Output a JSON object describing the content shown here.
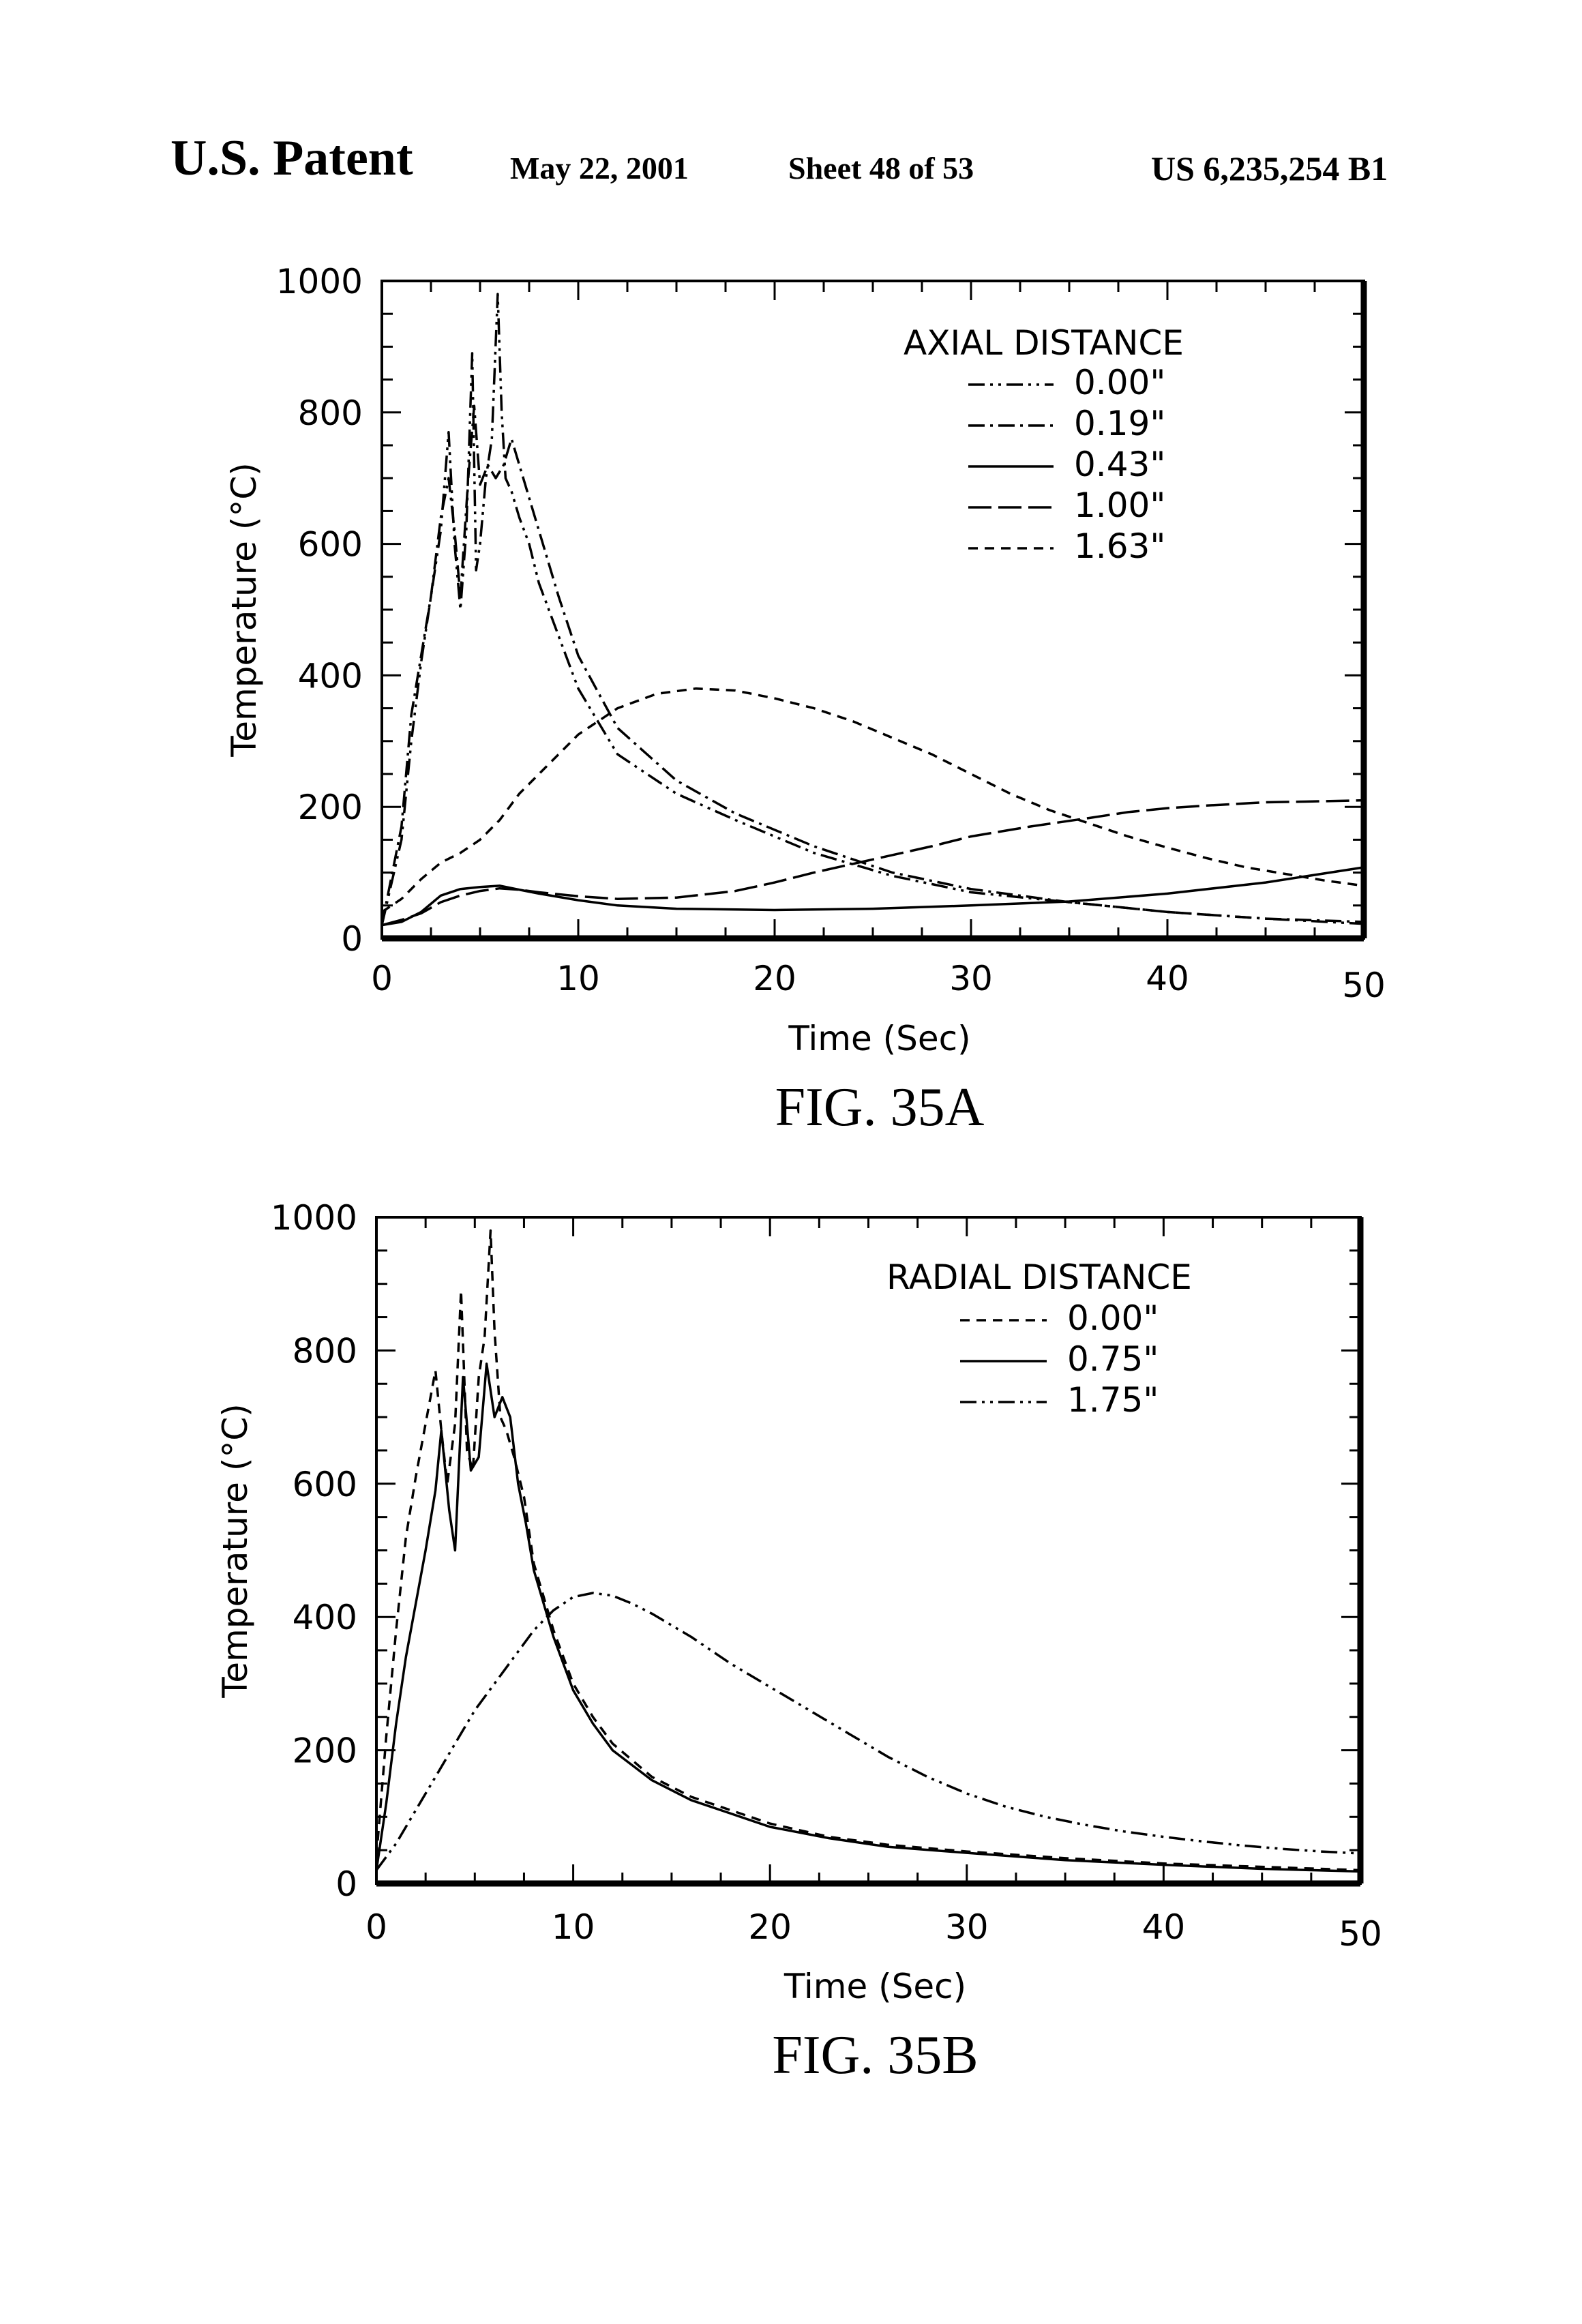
{
  "header": {
    "patent_label": "U.S. Patent",
    "date": "May 22, 2001",
    "sheet": "Sheet 48 of 53",
    "patent_number": "US 6,235,254 B1"
  },
  "dash_styles": {
    "solid": "none",
    "short-dash": "14 10",
    "dotted": "7 7",
    "dash-dot": "24 8 4 8",
    "dash-dot-dot": "24 8 4 8 4 8",
    "long-dash": "34 10"
  },
  "chart_data": [
    {
      "type": "line",
      "figure_label": "FIG. 35A",
      "xlabel": "Time (Sec)",
      "ylabel": "Temperature (°C)",
      "xlim": [
        0,
        50
      ],
      "ylim": [
        0,
        1000
      ],
      "xticks": [
        "0",
        "10",
        "20",
        "30",
        "40",
        "50"
      ],
      "yticks": [
        "0",
        "200",
        "400",
        "600",
        "800",
        "1000"
      ],
      "legend_title": "AXIAL DISTANCE",
      "legend_position": "top-right",
      "series": [
        {
          "name": "0.00\"",
          "style": "dash-dot-dot",
          "x": [
            0,
            1,
            1.5,
            2,
            2.5,
            3,
            3.4,
            3.7,
            4,
            4.3,
            4.6,
            4.8,
            5,
            5.3,
            5.6,
            5.9,
            6.1,
            6.3,
            6.6,
            7,
            7.5,
            8,
            9,
            10,
            12,
            15,
            18,
            22,
            26,
            30,
            35,
            40,
            45,
            50
          ],
          "y": [
            20,
            150,
            300,
            420,
            520,
            620,
            770,
            600,
            500,
            620,
            890,
            560,
            600,
            700,
            760,
            980,
            800,
            700,
            680,
            640,
            600,
            540,
            460,
            380,
            280,
            220,
            180,
            130,
            95,
            70,
            55,
            40,
            30,
            22
          ]
        },
        {
          "name": "0.19\"",
          "style": "dash-dot",
          "x": [
            0,
            1,
            1.5,
            2,
            2.5,
            3,
            3.4,
            3.7,
            4,
            4.4,
            4.7,
            5,
            5.4,
            5.8,
            6.2,
            6.6,
            7,
            7.5,
            8,
            9,
            10,
            12,
            15,
            18,
            22,
            26,
            30,
            35,
            40,
            45,
            50
          ],
          "y": [
            20,
            170,
            340,
            430,
            520,
            640,
            700,
            620,
            520,
            700,
            810,
            690,
            720,
            700,
            720,
            760,
            720,
            670,
            620,
            520,
            430,
            320,
            240,
            190,
            140,
            100,
            75,
            55,
            40,
            30,
            25
          ]
        },
        {
          "name": "0.43\"",
          "style": "solid",
          "x": [
            0,
            1,
            2,
            3,
            4,
            5,
            6,
            7,
            8,
            10,
            12,
            15,
            20,
            25,
            30,
            35,
            40,
            45,
            50
          ],
          "y": [
            20,
            25,
            40,
            65,
            75,
            78,
            80,
            74,
            68,
            58,
            50,
            45,
            43,
            45,
            50,
            56,
            68,
            85,
            108
          ]
        },
        {
          "name": "1.00\"",
          "style": "long-dash",
          "x": [
            0,
            1,
            2,
            3,
            4,
            5,
            6,
            7,
            8,
            10,
            12,
            15,
            18,
            20,
            22,
            25,
            28,
            30,
            33,
            36,
            38,
            40,
            42,
            45,
            47,
            50
          ],
          "y": [
            20,
            28,
            38,
            55,
            65,
            72,
            76,
            74,
            70,
            64,
            60,
            62,
            72,
            85,
            100,
            120,
            140,
            155,
            170,
            183,
            192,
            198,
            202,
            207,
            208,
            210
          ]
        },
        {
          "name": "1.63\"",
          "style": "short-dash",
          "x": [
            0,
            1,
            2,
            3,
            4,
            5,
            6,
            7,
            8,
            9,
            10,
            12,
            14,
            16,
            18,
            20,
            22,
            24,
            26,
            28,
            30,
            32,
            34,
            36,
            38,
            40,
            42,
            44,
            46,
            48,
            50
          ],
          "y": [
            40,
            60,
            90,
            115,
            130,
            150,
            180,
            220,
            250,
            280,
            310,
            350,
            372,
            380,
            377,
            365,
            350,
            330,
            305,
            280,
            250,
            220,
            195,
            175,
            155,
            138,
            122,
            108,
            98,
            88,
            80
          ]
        }
      ]
    },
    {
      "type": "line",
      "figure_label": "FIG. 35B",
      "xlabel": "Time (Sec)",
      "ylabel": "Temperature (°C)",
      "xlim": [
        0,
        50
      ],
      "ylim": [
        0,
        1000
      ],
      "xticks": [
        "0",
        "10",
        "20",
        "30",
        "40",
        "50"
      ],
      "yticks": [
        "0",
        "200",
        "400",
        "600",
        "800",
        "1000"
      ],
      "legend_title": "RADIAL DISTANCE",
      "legend_position": "top-right",
      "series": [
        {
          "name": "0.00\"",
          "style": "short-dash",
          "x": [
            0,
            0.5,
            1,
            1.5,
            2,
            2.5,
            3,
            3.3,
            3.6,
            4,
            4.3,
            4.6,
            4.9,
            5.2,
            5.5,
            5.8,
            6,
            6.3,
            6.6,
            7,
            7.5,
            8,
            9,
            10,
            11,
            12,
            14,
            16,
            18,
            20,
            23,
            26,
            30,
            35,
            40,
            45,
            50
          ],
          "y": [
            40,
            220,
            380,
            520,
            610,
            690,
            770,
            680,
            600,
            690,
            890,
            650,
            620,
            760,
            820,
            980,
            830,
            700,
            680,
            640,
            580,
            480,
            380,
            300,
            250,
            210,
            160,
            130,
            110,
            90,
            70,
            58,
            48,
            38,
            30,
            25,
            20
          ]
        },
        {
          "name": "0.75\"",
          "style": "solid",
          "x": [
            0,
            0.5,
            1,
            1.5,
            2,
            2.5,
            3,
            3.3,
            3.7,
            4,
            4.4,
            4.8,
            5.2,
            5.6,
            6,
            6.4,
            6.8,
            7.2,
            7.6,
            8,
            9,
            10,
            11,
            12,
            14,
            16,
            18,
            20,
            23,
            26,
            30,
            35,
            40,
            45,
            50
          ],
          "y": [
            20,
            120,
            240,
            340,
            420,
            500,
            590,
            680,
            560,
            500,
            760,
            620,
            640,
            780,
            700,
            730,
            700,
            600,
            540,
            470,
            370,
            290,
            240,
            200,
            155,
            125,
            105,
            85,
            68,
            55,
            46,
            35,
            28,
            22,
            18
          ]
        },
        {
          "name": "1.75\"",
          "style": "dash-dot-dot",
          "x": [
            0,
            1,
            2,
            3,
            4,
            5,
            6,
            7,
            8,
            9,
            10,
            11,
            12,
            13,
            14,
            16,
            18,
            20,
            22,
            24,
            26,
            28,
            30,
            32,
            34,
            36,
            38,
            40,
            42,
            44,
            46,
            48,
            50
          ],
          "y": [
            20,
            60,
            110,
            160,
            210,
            260,
            300,
            340,
            380,
            410,
            430,
            436,
            432,
            420,
            405,
            370,
            330,
            295,
            260,
            225,
            190,
            160,
            135,
            115,
            100,
            88,
            78,
            70,
            63,
            57,
            52,
            48,
            45
          ]
        }
      ]
    }
  ]
}
